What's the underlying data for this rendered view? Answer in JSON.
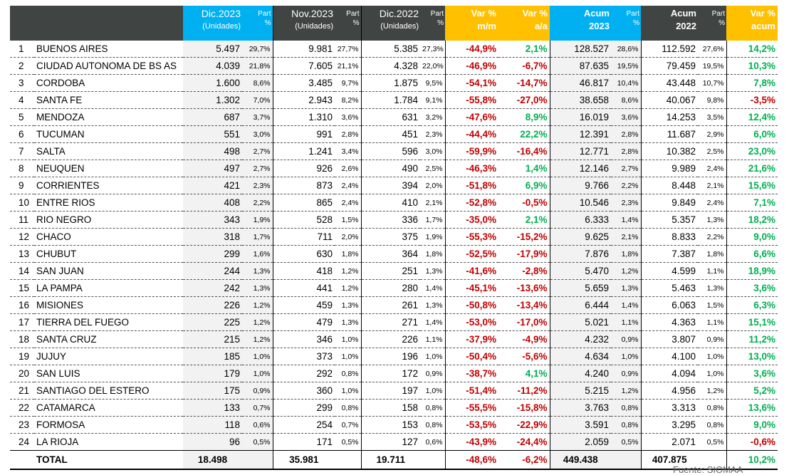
{
  "headers": {
    "dic2023": "Dic.2023",
    "nov2023": "Nov.2023",
    "dic2022": "Dic.2022",
    "unidades": "(Unidades)",
    "part": "Part",
    "pct": "%",
    "var": "Var %",
    "mm": "m/m",
    "aa": "a/a",
    "acum": "Acum",
    "y2023": "2023",
    "y2022": "2022",
    "acum_l": "acum"
  },
  "rows": [
    [
      "1",
      "BUENOS AIRES",
      "5.497",
      "29,7%",
      "9.981",
      "27,7%",
      "5.385",
      "27,3%",
      "-44,9%",
      "2,1%",
      "128.527",
      "28,6%",
      "112.592",
      "27,6%",
      "14,2%"
    ],
    [
      "2",
      "CIUDAD AUTONOMA DE BS AS",
      "4.039",
      "21,8%",
      "7.605",
      "21,1%",
      "4.328",
      "22,0%",
      "-46,9%",
      "-6,7%",
      "87.635",
      "19,5%",
      "79.459",
      "19,5%",
      "10,3%"
    ],
    [
      "3",
      "CORDOBA",
      "1.600",
      "8,6%",
      "3.485",
      "9,7%",
      "1.875",
      "9,5%",
      "-54,1%",
      "-14,7%",
      "46.817",
      "10,4%",
      "43.448",
      "10,7%",
      "7,8%"
    ],
    [
      "4",
      "SANTA FE",
      "1.302",
      "7,0%",
      "2.943",
      "8,2%",
      "1.784",
      "9,1%",
      "-55,8%",
      "-27,0%",
      "38.658",
      "8,6%",
      "40.067",
      "9,8%",
      "-3,5%"
    ],
    [
      "5",
      "MENDOZA",
      "687",
      "3,7%",
      "1.310",
      "3,6%",
      "631",
      "3,2%",
      "-47,6%",
      "8,9%",
      "16.019",
      "3,6%",
      "14.253",
      "3,5%",
      "12,4%"
    ],
    [
      "6",
      "TUCUMAN",
      "551",
      "3,0%",
      "991",
      "2,8%",
      "451",
      "2,3%",
      "-44,4%",
      "22,2%",
      "12.391",
      "2,8%",
      "11.687",
      "2,9%",
      "6,0%"
    ],
    [
      "7",
      "SALTA",
      "498",
      "2,7%",
      "1.241",
      "3,4%",
      "596",
      "3,0%",
      "-59,9%",
      "-16,4%",
      "12.771",
      "2,8%",
      "10.382",
      "2,5%",
      "23,0%"
    ],
    [
      "8",
      "NEUQUEN",
      "497",
      "2,7%",
      "926",
      "2,6%",
      "490",
      "2,5%",
      "-46,3%",
      "1,4%",
      "12.146",
      "2,7%",
      "9.989",
      "2,4%",
      "21,6%"
    ],
    [
      "9",
      "CORRIENTES",
      "421",
      "2,3%",
      "873",
      "2,4%",
      "394",
      "2,0%",
      "-51,8%",
      "6,9%",
      "9.766",
      "2,2%",
      "8.448",
      "2,1%",
      "15,6%"
    ],
    [
      "10",
      "ENTRE RIOS",
      "408",
      "2,2%",
      "865",
      "2,4%",
      "410",
      "2,1%",
      "-52,8%",
      "-0,5%",
      "10.546",
      "2,3%",
      "9.849",
      "2,4%",
      "7,1%"
    ],
    [
      "11",
      "RIO NEGRO",
      "343",
      "1,9%",
      "528",
      "1,5%",
      "336",
      "1,7%",
      "-35,0%",
      "2,1%",
      "6.333",
      "1,4%",
      "5.357",
      "1,3%",
      "18,2%"
    ],
    [
      "12",
      "CHACO",
      "318",
      "1,7%",
      "711",
      "2,0%",
      "375",
      "1,9%",
      "-55,3%",
      "-15,2%",
      "9.625",
      "2,1%",
      "8.833",
      "2,2%",
      "9,0%"
    ],
    [
      "13",
      "CHUBUT",
      "299",
      "1,6%",
      "630",
      "1,8%",
      "364",
      "1,8%",
      "-52,5%",
      "-17,9%",
      "7.876",
      "1,8%",
      "7.387",
      "1,8%",
      "6,6%"
    ],
    [
      "14",
      "SAN JUAN",
      "244",
      "1,3%",
      "418",
      "1,2%",
      "251",
      "1,3%",
      "-41,6%",
      "-2,8%",
      "5.470",
      "1,2%",
      "4.599",
      "1,1%",
      "18,9%"
    ],
    [
      "15",
      "LA PAMPA",
      "242",
      "1,3%",
      "441",
      "1,2%",
      "280",
      "1,4%",
      "-45,1%",
      "-13,6%",
      "5.659",
      "1,3%",
      "5.463",
      "1,3%",
      "3,6%"
    ],
    [
      "16",
      "MISIONES",
      "226",
      "1,2%",
      "459",
      "1,3%",
      "261",
      "1,3%",
      "-50,8%",
      "-13,4%",
      "6.444",
      "1,4%",
      "6.063",
      "1,5%",
      "6,3%"
    ],
    [
      "17",
      "TIERRA DEL FUEGO",
      "225",
      "1,2%",
      "479",
      "1,3%",
      "271",
      "1,4%",
      "-53,0%",
      "-17,0%",
      "5.021",
      "1,1%",
      "4.363",
      "1,1%",
      "15,1%"
    ],
    [
      "18",
      "SANTA CRUZ",
      "215",
      "1,2%",
      "346",
      "1,0%",
      "226",
      "1,1%",
      "-37,9%",
      "-4,9%",
      "4.232",
      "0,9%",
      "3.807",
      "0,9%",
      "11,2%"
    ],
    [
      "19",
      "JUJUY",
      "185",
      "1,0%",
      "373",
      "1,0%",
      "196",
      "1,0%",
      "-50,4%",
      "-5,6%",
      "4.634",
      "1,0%",
      "4.100",
      "1,0%",
      "13,0%"
    ],
    [
      "20",
      "SAN LUIS",
      "179",
      "1,0%",
      "292",
      "0,8%",
      "172",
      "0,9%",
      "-38,7%",
      "4,1%",
      "4.240",
      "0,9%",
      "4.094",
      "1,0%",
      "3,6%"
    ],
    [
      "21",
      "SANTIAGO DEL ESTERO",
      "175",
      "0,9%",
      "360",
      "1,0%",
      "197",
      "1,0%",
      "-51,4%",
      "-11,2%",
      "5.215",
      "1,2%",
      "4.956",
      "1,2%",
      "5,2%"
    ],
    [
      "22",
      "CATAMARCA",
      "133",
      "0,7%",
      "299",
      "0,8%",
      "158",
      "0,8%",
      "-55,5%",
      "-15,8%",
      "3.763",
      "0,8%",
      "3.313",
      "0,8%",
      "13,6%"
    ],
    [
      "23",
      "FORMOSA",
      "118",
      "0,6%",
      "254",
      "0,7%",
      "153",
      "0,8%",
      "-53,5%",
      "-22,9%",
      "3.591",
      "0,8%",
      "3.295",
      "0,8%",
      "9,0%"
    ],
    [
      "24",
      "LA RIOJA",
      "96",
      "0,5%",
      "171",
      "0,5%",
      "127",
      "0,6%",
      "-43,9%",
      "-24,4%",
      "2.059",
      "0,5%",
      "2.071",
      "0,5%",
      "-0,6%"
    ]
  ],
  "total": {
    "label": "TOTAL",
    "dic2023": "18.498",
    "nov2023": "35.981",
    "dic2022": "19.711",
    "mm": "-48,6%",
    "aa": "-6,2%",
    "acum2023": "449.438",
    "acum2022": "407.875",
    "acum_var": "10,2%"
  },
  "source": "Fuente: SIOMAA",
  "colors": {
    "header": "#404544",
    "cyan": "#00b0f0",
    "orange": "#ffc000",
    "negative": "#c00000",
    "positive": "#00b050"
  }
}
